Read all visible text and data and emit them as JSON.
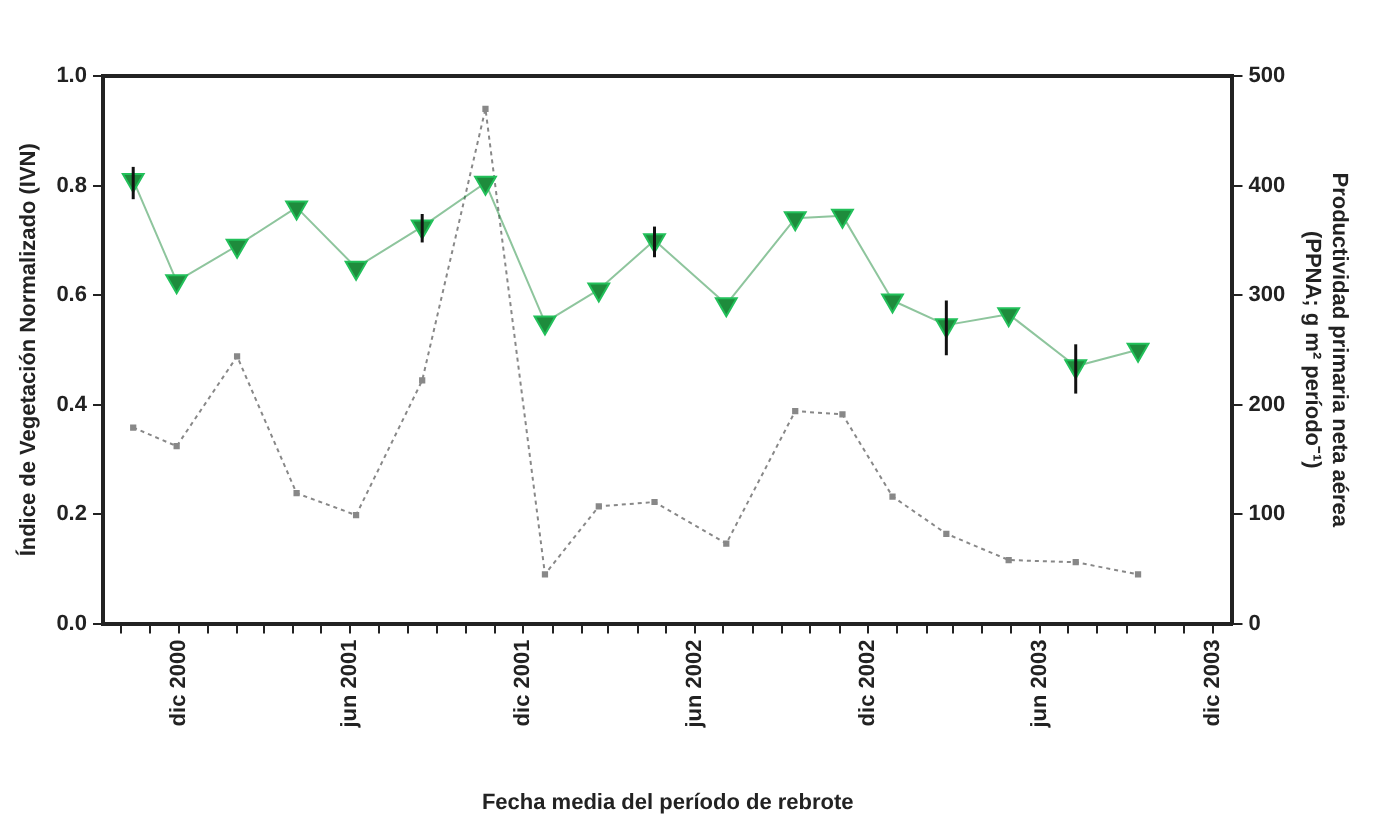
{
  "chart_data": {
    "type": "line",
    "xlabel": "Fecha media del período de rebrote",
    "ylabel": "Índice de Vegetación Normalizado (IVN)",
    "y2label": "Productividad primaria neta aérea (PPNA; g m² período⁻¹)",
    "xlim": [
      "2000-09-12",
      "2003-12-22"
    ],
    "xticks": [
      {
        "value": "2000-10-01",
        "label": null
      },
      {
        "value": "2000-11-01",
        "label": null
      },
      {
        "value": "2000-12-01",
        "label": "dic 2000"
      },
      {
        "value": "2001-01-01",
        "label": null
      },
      {
        "value": "2001-02-01",
        "label": null
      },
      {
        "value": "2001-03-01",
        "label": null
      },
      {
        "value": "2001-04-01",
        "label": null
      },
      {
        "value": "2001-05-01",
        "label": null
      },
      {
        "value": "2001-06-01",
        "label": "jun 2001"
      },
      {
        "value": "2001-07-01",
        "label": null
      },
      {
        "value": "2001-08-01",
        "label": null
      },
      {
        "value": "2001-09-01",
        "label": null
      },
      {
        "value": "2001-10-01",
        "label": null
      },
      {
        "value": "2001-11-01",
        "label": null
      },
      {
        "value": "2001-12-01",
        "label": "dic 2001"
      },
      {
        "value": "2002-01-01",
        "label": null
      },
      {
        "value": "2002-02-01",
        "label": null
      },
      {
        "value": "2002-03-01",
        "label": null
      },
      {
        "value": "2002-04-01",
        "label": null
      },
      {
        "value": "2002-05-01",
        "label": null
      },
      {
        "value": "2002-06-01",
        "label": "jun 2002"
      },
      {
        "value": "2002-07-01",
        "label": null
      },
      {
        "value": "2002-08-01",
        "label": null
      },
      {
        "value": "2002-09-01",
        "label": null
      },
      {
        "value": "2002-10-01",
        "label": null
      },
      {
        "value": "2002-11-01",
        "label": null
      },
      {
        "value": "2002-12-01",
        "label": "dic 2002"
      },
      {
        "value": "2003-01-01",
        "label": null
      },
      {
        "value": "2003-02-01",
        "label": null
      },
      {
        "value": "2003-03-01",
        "label": null
      },
      {
        "value": "2003-04-01",
        "label": null
      },
      {
        "value": "2003-05-01",
        "label": null
      },
      {
        "value": "2003-06-01",
        "label": "jun 2003"
      },
      {
        "value": "2003-07-01",
        "label": null
      },
      {
        "value": "2003-08-01",
        "label": null
      },
      {
        "value": "2003-09-01",
        "label": null
      },
      {
        "value": "2003-10-01",
        "label": null
      },
      {
        "value": "2003-11-01",
        "label": null
      },
      {
        "value": "2003-12-01",
        "label": "dic 2003"
      }
    ],
    "x": [
      "2000-10-14",
      "2000-11-29",
      "2001-02-01",
      "2001-04-05",
      "2001-06-07",
      "2001-08-16",
      "2001-10-22",
      "2001-12-24",
      "2002-02-19",
      "2002-04-19",
      "2002-07-04",
      "2002-09-15",
      "2002-11-04",
      "2002-12-27",
      "2003-02-22",
      "2003-04-29",
      "2003-07-09",
      "2003-09-13"
    ],
    "ylim": [
      0,
      1
    ],
    "yticks": [
      {
        "value": 0,
        "label": "0.0"
      },
      {
        "value": 0.2,
        "label": "0.2"
      },
      {
        "value": 0.4,
        "label": "0.4"
      },
      {
        "value": 0.6,
        "label": "0.6"
      },
      {
        "value": 0.8,
        "label": "0.8"
      },
      {
        "value": 1,
        "label": "1.0"
      }
    ],
    "y2lim": [
      0,
      500
    ],
    "y2ticks": [
      0,
      100,
      200,
      300,
      400,
      500
    ],
    "grid": false,
    "legend": false,
    "series": [
      {
        "color": "#1e8c3c",
        "marker": "triangle",
        "line_style": "solid",
        "values": [
          0.81,
          0.625,
          0.69,
          0.76,
          0.65,
          0.725,
          0.805,
          0.55,
          0.61,
          0.7,
          0.583,
          0.74,
          0.745,
          0.59,
          0.545,
          0.565,
          0.47,
          0.5
        ],
        "errors": [
          [
            0.775,
            0.834
          ],
          null,
          null,
          null,
          null,
          [
            0.696,
            0.748
          ],
          null,
          null,
          null,
          [
            0.669,
            0.725
          ],
          null,
          null,
          null,
          null,
          [
            0.49,
            0.59
          ],
          null,
          [
            0.42,
            0.51
          ],
          null
        ]
      },
      {
        "color": "#888888",
        "marker": "square",
        "line_style": "dotted",
        "axis": "y2",
        "values": [
          179,
          162,
          244,
          119,
          99,
          222,
          470,
          45,
          107,
          111,
          73,
          194,
          191,
          116,
          82,
          58,
          56,
          45
        ]
      }
    ]
  }
}
